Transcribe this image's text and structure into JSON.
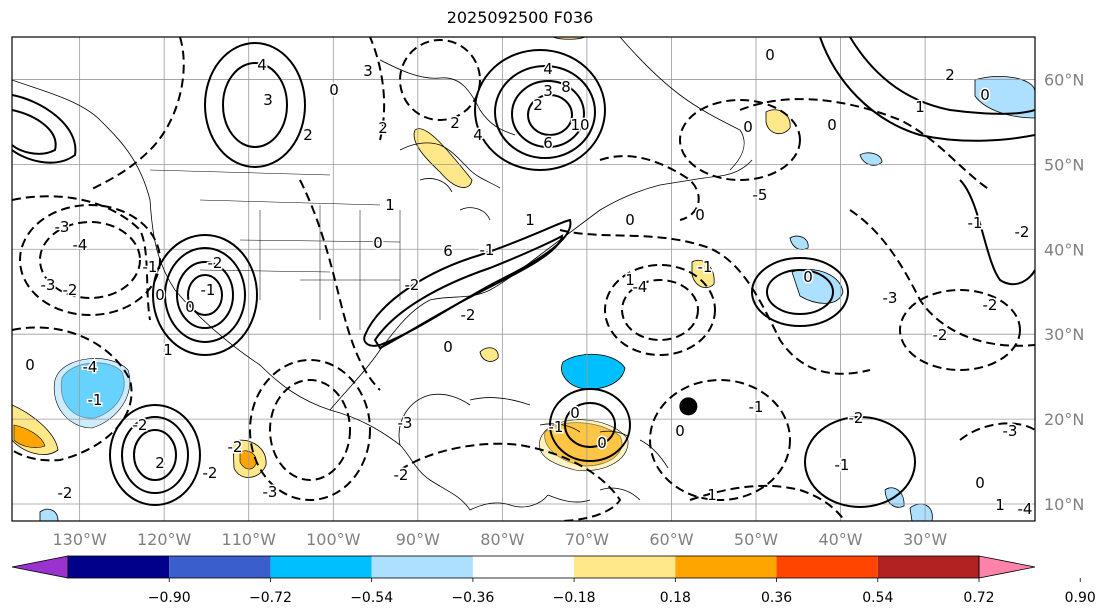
{
  "title": "2025092500 F036",
  "map": {
    "projection": "lat-lon",
    "extent": {
      "lon": [
        -138,
        -17
      ],
      "lat": [
        8,
        65
      ]
    },
    "gridlines": true,
    "lon_ticks": [
      "130°W",
      "120°W",
      "110°W",
      "100°W",
      "90°W",
      "80°W",
      "70°W",
      "60°W",
      "50°W",
      "40°W",
      "30°W"
    ],
    "lat_ticks": [
      "60°N",
      "50°N",
      "40°N",
      "30°N",
      "20°N",
      "10°N"
    ],
    "contour_labels": [
      "4",
      "3",
      "2",
      "8",
      "6",
      "10",
      "4",
      "3",
      "2",
      "0",
      "3",
      "2",
      "1",
      "0",
      "2",
      "4",
      "6",
      "-2",
      "-2",
      "-3",
      "-4",
      "-3",
      "-2",
      "-1",
      "0",
      "0",
      "-2",
      "-1",
      "1",
      "0",
      "-1",
      "-4",
      "-3",
      "-2",
      "-2",
      "-2",
      "2",
      "-2",
      "-3",
      "0",
      "-2",
      "0",
      "0",
      "-1",
      "1",
      "0",
      "-1",
      "1",
      "-4",
      "-3",
      "-2",
      "-2",
      "-2",
      "-1",
      "0",
      "0",
      "0",
      "1",
      "2",
      "0",
      "-1",
      "-2",
      "-3",
      "-4",
      "-5",
      "0",
      "0",
      "1",
      "-1",
      "-1",
      "0",
      "1",
      "0"
    ],
    "shading_colors": {
      "neg_strong": "#00bfff",
      "neg_weak": "#addfff",
      "pos_weak": "#ffe88a",
      "pos_strong": "#ffa500"
    },
    "marker": {
      "lon": -58,
      "lat": 21.5,
      "color": "#000000"
    }
  },
  "colorbar": {
    "colors": [
      "#9a32cd",
      "#00008b",
      "#3a5fcd",
      "#00bfff",
      "#addfff",
      "#ffffff",
      "#ffe88a",
      "#ffa500",
      "#ff4500",
      "#b22222",
      "#ff82ab"
    ],
    "tick_labels": [
      "−0.90",
      "−0.72",
      "−0.54",
      "−0.36",
      "−0.18",
      "0.18",
      "0.36",
      "0.54",
      "0.72",
      "0.90"
    ]
  }
}
